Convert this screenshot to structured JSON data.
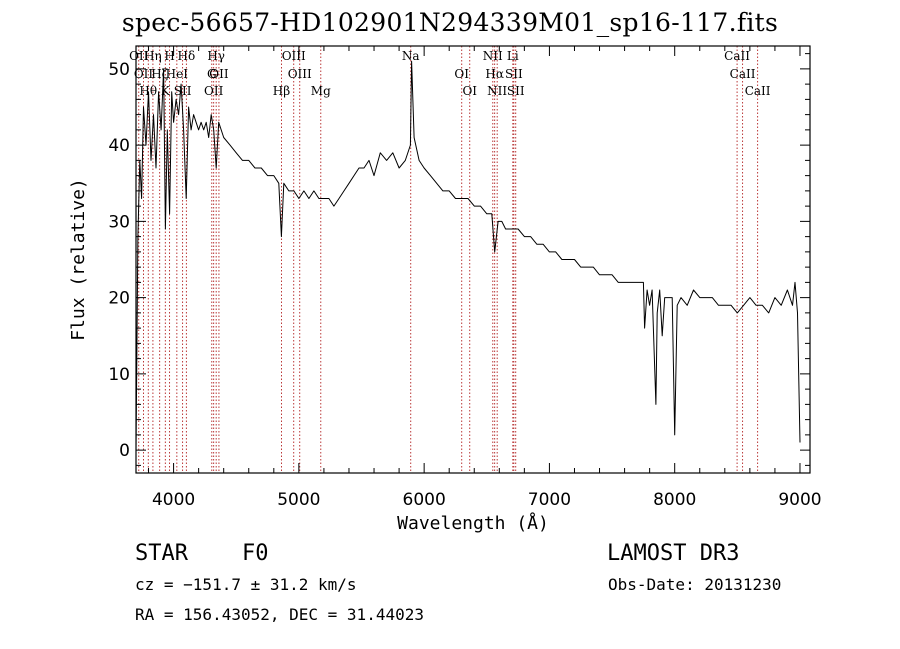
{
  "chart_data": {
    "type": "line",
    "title": "spec-56657-HD102901N294339M01_sp16-117.fits",
    "xlabel": "Wavelength (Å)",
    "ylabel": "Flux (relative)",
    "xlim": [
      3700,
      9080
    ],
    "ylim": [
      -3,
      53
    ],
    "xticks": [
      4000,
      5000,
      6000,
      7000,
      8000,
      9000
    ],
    "yticks": [
      0,
      10,
      20,
      30,
      40,
      50
    ],
    "series": [
      {
        "name": "flux",
        "x": [
          3700,
          3715,
          3730,
          3745,
          3760,
          3780,
          3800,
          3820,
          3840,
          3860,
          3880,
          3900,
          3920,
          3935,
          3950,
          3968,
          3985,
          4000,
          4020,
          4040,
          4060,
          4080,
          4101,
          4120,
          4140,
          4160,
          4180,
          4200,
          4220,
          4240,
          4260,
          4280,
          4300,
          4320,
          4340,
          4360,
          4380,
          4400,
          4450,
          4500,
          4550,
          4600,
          4650,
          4700,
          4750,
          4800,
          4840,
          4861,
          4880,
          4920,
          4960,
          5000,
          5040,
          5080,
          5120,
          5160,
          5200,
          5240,
          5280,
          5320,
          5360,
          5400,
          5440,
          5480,
          5520,
          5560,
          5600,
          5650,
          5700,
          5750,
          5800,
          5850,
          5890,
          5900,
          5920,
          5960,
          6000,
          6050,
          6100,
          6150,
          6200,
          6250,
          6300,
          6350,
          6400,
          6450,
          6500,
          6540,
          6563,
          6590,
          6620,
          6650,
          6700,
          6750,
          6800,
          6850,
          6900,
          6950,
          7000,
          7050,
          7100,
          7150,
          7200,
          7250,
          7300,
          7350,
          7400,
          7450,
          7500,
          7550,
          7600,
          7650,
          7700,
          7750,
          7760,
          7780,
          7800,
          7820,
          7850,
          7860,
          7880,
          7900,
          7920,
          7950,
          7980,
          8000,
          8020,
          8050,
          8100,
          8150,
          8200,
          8250,
          8300,
          8350,
          8400,
          8450,
          8500,
          8550,
          8600,
          8650,
          8700,
          8750,
          8800,
          8850,
          8900,
          8940,
          8960,
          8980,
          9000
        ],
        "y": [
          0,
          28,
          38,
          33,
          45,
          40,
          47,
          38,
          44,
          37,
          47,
          42,
          50,
          29,
          42,
          31,
          47,
          43,
          46,
          44,
          48,
          42,
          33,
          45,
          42,
          44,
          43,
          42,
          43,
          42,
          43,
          41,
          44,
          42,
          37,
          43,
          42,
          41,
          40,
          39,
          38,
          38,
          37,
          37,
          36,
          36,
          35,
          28,
          35,
          34,
          34,
          33,
          34,
          33,
          34,
          33,
          33,
          33,
          32,
          33,
          34,
          35,
          36,
          37,
          37,
          38,
          36,
          39,
          38,
          39,
          37,
          38,
          40,
          51,
          41,
          38,
          37,
          36,
          35,
          34,
          34,
          33,
          33,
          33,
          32,
          32,
          31,
          31,
          26,
          30,
          30,
          29,
          29,
          29,
          28,
          28,
          27,
          27,
          26,
          26,
          25,
          25,
          25,
          24,
          24,
          24,
          23,
          23,
          23,
          22,
          22,
          22,
          22,
          22,
          16,
          21,
          19,
          21,
          6,
          18,
          21,
          15,
          20,
          20,
          20,
          2,
          19,
          20,
          19,
          21,
          20,
          20,
          20,
          19,
          19,
          19,
          18,
          19,
          20,
          19,
          19,
          18,
          20,
          19,
          21,
          19,
          22,
          18,
          1
        ]
      }
    ],
    "lines": [
      {
        "wl": 3722,
        "label": "OII"
      },
      {
        "wl": 3760,
        "label": "OII"
      },
      {
        "wl": 3798,
        "label": "Hθ"
      },
      {
        "wl": 3835,
        "label": "Hη"
      },
      {
        "wl": 3889,
        "label": "Hζ"
      },
      {
        "wl": 3934,
        "label": "K"
      },
      {
        "wl": 3968,
        "label": "H"
      },
      {
        "wl": 4026,
        "label": "HeI"
      },
      {
        "wl": 4072,
        "label": "SII"
      },
      {
        "wl": 4102,
        "label": "Hδ"
      },
      {
        "wl": 4305,
        "label": "G"
      },
      {
        "wl": 4320,
        "label": "OII"
      },
      {
        "wl": 4340,
        "label": "Hγ"
      },
      {
        "wl": 4362,
        "label": "OII"
      },
      {
        "wl": 4861,
        "label": "Hβ"
      },
      {
        "wl": 4959,
        "label": "OIII"
      },
      {
        "wl": 5007,
        "label": "OIII"
      },
      {
        "wl": 5175,
        "label": "Mg"
      },
      {
        "wl": 5893,
        "label": "Na"
      },
      {
        "wl": 6300,
        "label": "OI"
      },
      {
        "wl": 6364,
        "label": "OI"
      },
      {
        "wl": 6548,
        "label": "NII"
      },
      {
        "wl": 6563,
        "label": "Hα"
      },
      {
        "wl": 6583,
        "label": "NII"
      },
      {
        "wl": 6708,
        "label": "Li"
      },
      {
        "wl": 6716,
        "label": "SII"
      },
      {
        "wl": 6731,
        "label": "SII"
      },
      {
        "wl": 8498,
        "label": "CaII"
      },
      {
        "wl": 8542,
        "label": "CaII"
      },
      {
        "wl": 8662,
        "label": "CaII"
      }
    ],
    "line_color": "#b22222"
  },
  "info": {
    "class_label": "STAR",
    "subclass": "F0",
    "survey": "LAMOST DR3",
    "cz": "cz = −151.7 ± 31.2 km/s",
    "obs_date": "Obs-Date: 20131230",
    "coords": "RA = 156.43052, DEC =  31.44023"
  }
}
